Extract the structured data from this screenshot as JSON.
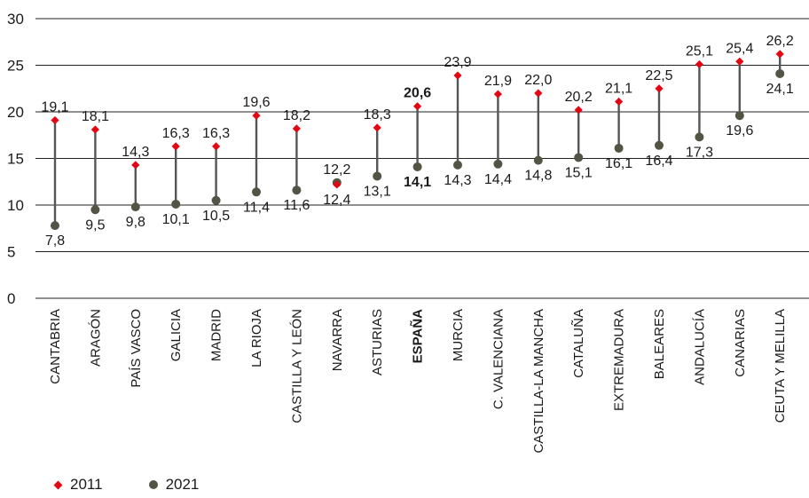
{
  "colors": {
    "series_2011": "#e30613",
    "series_2021": "#545445",
    "connector": "#555555",
    "grid": "#222222"
  },
  "chart_data": {
    "type": "dumbbell",
    "ylim": [
      0,
      30
    ],
    "yticks": [
      0,
      5,
      10,
      15,
      20,
      25,
      30
    ],
    "grid": true,
    "legend_position": "bottom-left",
    "categories": [
      "CANTABRIA",
      "ARAGÓN",
      "PAÍS VASCO",
      "GALICIA",
      "MADRID",
      "LA RIOJA",
      "CASTILLA Y LEÓN",
      "NAVARRA",
      "ASTURIAS",
      "ESPAÑA",
      "MURCIA",
      "C. VALENCIANA",
      "CASTILLA-LA MANCHA",
      "CATALUÑA",
      "EXTREMADURA",
      "BALEARES",
      "ANDALUCÍA",
      "CANARIAS",
      "CEUTA Y MELILLA"
    ],
    "highlight_category": "ESPAÑA",
    "series": [
      {
        "name": "2011",
        "values": [
          19.1,
          18.1,
          14.3,
          16.3,
          16.3,
          19.6,
          18.2,
          12.2,
          18.3,
          20.6,
          23.9,
          21.9,
          22.0,
          20.2,
          21.1,
          22.5,
          25.1,
          25.4,
          26.2
        ],
        "labels": [
          "19,1",
          "18,1",
          "14,3",
          "16,3",
          "16,3",
          "19,6",
          "18,2",
          "12,2",
          "18,3",
          "20,6",
          "23,9",
          "21,9",
          "22,0",
          "20,2",
          "21,1",
          "22,5",
          "25,1",
          "25,4",
          "26,2"
        ]
      },
      {
        "name": "2021",
        "values": [
          7.8,
          9.5,
          9.8,
          10.1,
          10.5,
          11.4,
          11.6,
          12.4,
          13.1,
          14.1,
          14.3,
          14.4,
          14.8,
          15.1,
          16.1,
          16.4,
          17.3,
          19.6,
          24.1
        ],
        "labels": [
          "7,8",
          "9,5",
          "9,8",
          "10,1",
          "10,5",
          "11,4",
          "11,6",
          "12,4",
          "13,1",
          "14,1",
          "14,3",
          "14,4",
          "14,8",
          "15,1",
          "16,1",
          "16,4",
          "17,3",
          "19,6",
          "24,1"
        ]
      }
    ]
  }
}
